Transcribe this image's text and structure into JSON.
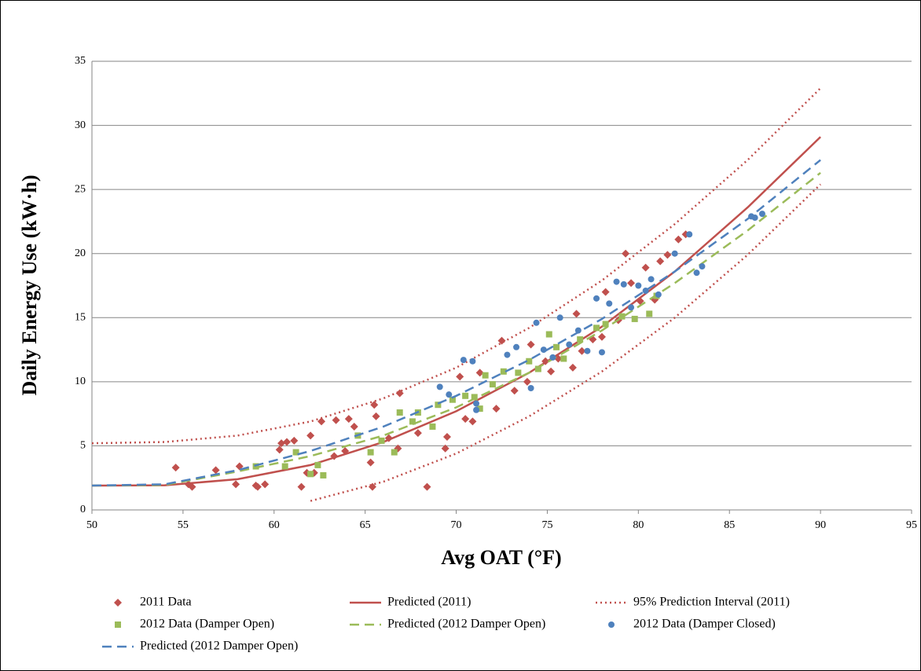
{
  "chart_data": {
    "type": "scatter",
    "xlabel": "Avg OAT (°F)",
    "ylabel": "Daily Energy Use (kW·h)",
    "xlim": [
      50,
      95
    ],
    "ylim": [
      0,
      35
    ],
    "xticks": [
      50,
      55,
      60,
      65,
      70,
      75,
      80,
      85,
      90,
      95
    ],
    "yticks": [
      0,
      5,
      10,
      15,
      20,
      25,
      30,
      35
    ],
    "grid": true,
    "series": [
      {
        "name": "2011 Data",
        "kind": "scatter",
        "marker": "diamond",
        "color": "#c0504d",
        "x": [
          54.6,
          55.3,
          55.5,
          56.8,
          57.9,
          58.1,
          59.0,
          59.1,
          59.5,
          60.3,
          60.4,
          60.7,
          61.1,
          61.5,
          61.8,
          62.0,
          62.2,
          62.6,
          63.3,
          63.4,
          63.9,
          64.1,
          64.4,
          65.3,
          65.4,
          65.5,
          65.6,
          66.3,
          66.8,
          66.9,
          67.9,
          68.4,
          69.4,
          69.5,
          70.2,
          70.5,
          70.9,
          71.3,
          72.2,
          72.5,
          73.2,
          73.9,
          74.1,
          74.9,
          75.2,
          75.6,
          76.4,
          76.6,
          76.9,
          77.5,
          78.0,
          78.2,
          78.9,
          79.3,
          79.6,
          80.1,
          80.4,
          80.9,
          81.2,
          81.6,
          82.2,
          82.6
        ],
        "values": [
          3.3,
          2.0,
          1.8,
          3.1,
          2.0,
          3.4,
          1.9,
          1.8,
          2.0,
          4.7,
          5.2,
          5.3,
          5.4,
          1.8,
          2.9,
          5.8,
          2.9,
          6.9,
          4.2,
          7.0,
          4.6,
          7.1,
          6.5,
          3.7,
          1.8,
          8.2,
          7.3,
          5.6,
          4.8,
          9.1,
          6.0,
          1.8,
          4.8,
          5.7,
          10.4,
          7.1,
          6.9,
          10.7,
          7.9,
          13.2,
          9.3,
          10.0,
          12.9,
          11.6,
          10.8,
          11.8,
          11.1,
          15.3,
          12.4,
          13.3,
          13.5,
          17.0,
          14.8,
          20.0,
          17.7,
          16.3,
          18.9,
          16.4,
          19.4,
          19.9,
          21.1,
          21.5
        ]
      },
      {
        "name": "Predicted (2011)",
        "kind": "line",
        "dash": "solid",
        "color": "#c0504d",
        "x": [
          50,
          54,
          58,
          62,
          66,
          70,
          74,
          78,
          82,
          86,
          90
        ],
        "values": [
          1.9,
          1.92,
          2.4,
          3.5,
          5.3,
          7.7,
          10.7,
          14.3,
          18.6,
          23.6,
          29.1
        ]
      },
      {
        "name": "95% Prediction Interval (2011)",
        "kind": "line",
        "dash": "dotted",
        "color": "#c0504d",
        "x": [
          50,
          54,
          58,
          62,
          66,
          70,
          74,
          78,
          82,
          86,
          90
        ],
        "values": [
          5.2,
          5.3,
          5.8,
          6.9,
          8.7,
          11.1,
          14.2,
          17.9,
          22.3,
          27.3,
          32.9
        ],
        "lower": [
          null,
          null,
          null,
          0.7,
          2.2,
          4.4,
          7.3,
          10.8,
          15.0,
          19.9,
          25.4
        ]
      },
      {
        "name": "2012 Data (Damper Open)",
        "kind": "scatter",
        "marker": "square",
        "color": "#9bbb59",
        "x": [
          59.0,
          60.6,
          61.2,
          62.0,
          62.4,
          62.7,
          64.6,
          65.3,
          65.9,
          66.6,
          66.9,
          67.6,
          67.9,
          68.7,
          69.0,
          69.8,
          70.5,
          71.0,
          71.3,
          71.6,
          72.0,
          72.6,
          73.4,
          74.0,
          74.5,
          75.1,
          75.5,
          75.9,
          76.8,
          77.7,
          78.2,
          79.1,
          79.8,
          80.6,
          81.0
        ],
        "values": [
          3.4,
          3.4,
          4.5,
          2.8,
          3.5,
          2.7,
          5.8,
          4.5,
          5.4,
          4.5,
          7.6,
          6.9,
          7.6,
          6.5,
          8.2,
          8.6,
          8.9,
          8.8,
          7.9,
          10.5,
          9.8,
          10.8,
          10.7,
          11.6,
          11.0,
          13.7,
          12.7,
          11.8,
          13.3,
          14.2,
          14.5,
          15.1,
          14.9,
          15.3,
          16.7
        ]
      },
      {
        "name": "Predicted (2012 Damper Open)",
        "kind": "line",
        "dash": "dashed",
        "color": "#9bbb59",
        "x": [
          50,
          54,
          58,
          62,
          66,
          70,
          74,
          78,
          82,
          86,
          90
        ],
        "values": [
          1.9,
          1.95,
          3.0,
          4.2,
          5.8,
          8.0,
          10.7,
          14.0,
          17.7,
          21.8,
          26.3
        ]
      },
      {
        "name": "2012 Data (Damper Closed)",
        "kind": "scatter",
        "marker": "circle",
        "color": "#4f81bd",
        "x": [
          69.1,
          69.6,
          70.4,
          70.9,
          71.1,
          71.1,
          72.8,
          73.3,
          74.1,
          74.4,
          74.8,
          75.3,
          75.7,
          76.2,
          76.7,
          77.2,
          77.7,
          78.0,
          78.4,
          78.8,
          79.2,
          79.6,
          80.0,
          80.4,
          80.7,
          81.1,
          82.0,
          82.8,
          83.2,
          83.5,
          86.2,
          86.4,
          86.8
        ],
        "values": [
          9.6,
          9.0,
          11.7,
          11.6,
          7.8,
          8.3,
          12.1,
          12.7,
          9.5,
          14.6,
          12.5,
          11.9,
          15.0,
          12.9,
          14.0,
          12.4,
          16.5,
          12.3,
          16.1,
          17.8,
          17.6,
          15.8,
          17.5,
          17.1,
          18.0,
          16.8,
          20.0,
          21.5,
          18.5,
          19.0,
          22.9,
          22.8,
          23.1
        ]
      },
      {
        "name": "Predicted (2012 Damper Open)",
        "kind": "line",
        "dash": "dashed",
        "color": "#4f81bd",
        "x": [
          50,
          54,
          58,
          62,
          66,
          70,
          74,
          78,
          82,
          86,
          90
        ],
        "values": [
          1.9,
          2.0,
          3.1,
          4.6,
          6.5,
          8.9,
          11.7,
          14.9,
          18.6,
          22.7,
          27.3
        ]
      }
    ]
  }
}
